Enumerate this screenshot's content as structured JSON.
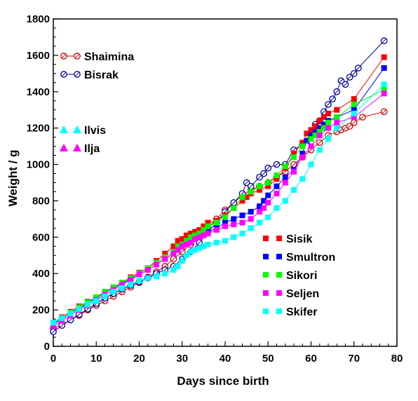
{
  "chart_data": {
    "type": "line",
    "title": "",
    "xlabel": "Days since birth",
    "ylabel": "Weight / g",
    "xlim": [
      0,
      80
    ],
    "ylim": [
      0,
      1800
    ],
    "xticks": [
      0,
      10,
      20,
      30,
      40,
      50,
      60,
      70,
      80
    ],
    "yticks": [
      0,
      200,
      400,
      600,
      800,
      1000,
      1200,
      1400,
      1600,
      1800
    ],
    "grid": false,
    "legend_groups": [
      {
        "position": "top-left",
        "entries": [
          0,
          1
        ]
      },
      {
        "position": "middle-left",
        "entries": [
          2,
          3
        ]
      },
      {
        "position": "bottom-right",
        "entries": [
          4,
          5,
          6,
          7,
          8
        ]
      }
    ],
    "series": [
      {
        "name": "Shaimina",
        "color": "#cc0000",
        "marker": "open-circle",
        "x": [
          0,
          2,
          4,
          6,
          8,
          10,
          12,
          14,
          16,
          18,
          20,
          22,
          24,
          26,
          28,
          30,
          32,
          34,
          36,
          38,
          40,
          42,
          44,
          46,
          48,
          50,
          52,
          54,
          56,
          58,
          60,
          62,
          64,
          66,
          67,
          68,
          69,
          70,
          72,
          77
        ],
        "y": [
          100,
          120,
          145,
          170,
          200,
          225,
          250,
          275,
          300,
          325,
          350,
          380,
          410,
          440,
          480,
          520,
          560,
          600,
          650,
          700,
          750,
          790,
          830,
          860,
          880,
          900,
          930,
          960,
          1000,
          1040,
          1080,
          1120,
          1160,
          1180,
          1190,
          1200,
          1210,
          1230,
          1260,
          1290
        ]
      },
      {
        "name": "Bisrak",
        "color": "#000099",
        "marker": "open-circle",
        "x": [
          0,
          2,
          4,
          6,
          8,
          10,
          12,
          14,
          16,
          18,
          20,
          22,
          24,
          26,
          28,
          30,
          32,
          34,
          36,
          38,
          40,
          42,
          44,
          45,
          46,
          48,
          49,
          50,
          52,
          54,
          56,
          58,
          60,
          61,
          62,
          63,
          64,
          65,
          66,
          67,
          68,
          69,
          70,
          71,
          77
        ],
        "y": [
          80,
          115,
          145,
          175,
          205,
          235,
          265,
          290,
          315,
          335,
          355,
          375,
          400,
          420,
          440,
          480,
          520,
          570,
          630,
          680,
          740,
          790,
          840,
          900,
          880,
          930,
          950,
          980,
          1000,
          1000,
          1080,
          1110,
          1170,
          1220,
          1240,
          1290,
          1330,
          1360,
          1400,
          1460,
          1440,
          1480,
          1500,
          1530,
          1680
        ]
      },
      {
        "name": "Ilvis",
        "color": "#00ffff",
        "marker": "filled-triangle",
        "x": [],
        "y": []
      },
      {
        "name": "Ilja",
        "color": "#ff00ff",
        "marker": "filled-triangle",
        "x": [],
        "y": []
      },
      {
        "name": "Sisik",
        "color": "#ff0000",
        "marker": "filled-square",
        "x": [
          0,
          2,
          4,
          6,
          8,
          10,
          12,
          14,
          16,
          18,
          20,
          22,
          24,
          26,
          28,
          29,
          30,
          31,
          32,
          33,
          34,
          35,
          36,
          38,
          40,
          42,
          44,
          45,
          46,
          48,
          50,
          52,
          54,
          56,
          58,
          59,
          60,
          61,
          62,
          63,
          64,
          66,
          70,
          77
        ],
        "y": [
          130,
          160,
          190,
          220,
          245,
          270,
          300,
          325,
          350,
          380,
          405,
          430,
          470,
          510,
          550,
          580,
          590,
          610,
          620,
          630,
          640,
          660,
          680,
          690,
          720,
          760,
          800,
          820,
          840,
          860,
          880,
          920,
          980,
          1060,
          1120,
          1170,
          1190,
          1210,
          1240,
          1260,
          1280,
          1300,
          1360,
          1590
        ]
      },
      {
        "name": "Smultron",
        "color": "#0000ff",
        "marker": "filled-square",
        "x": [
          0,
          2,
          4,
          6,
          8,
          10,
          12,
          14,
          16,
          18,
          20,
          22,
          24,
          26,
          28,
          29,
          30,
          31,
          32,
          33,
          34,
          35,
          36,
          38,
          40,
          42,
          44,
          46,
          48,
          49,
          50,
          52,
          54,
          56,
          58,
          59,
          60,
          61,
          62,
          63,
          64,
          66,
          70,
          77
        ],
        "y": [
          120,
          150,
          180,
          210,
          235,
          265,
          295,
          320,
          345,
          370,
          395,
          420,
          450,
          480,
          510,
          540,
          560,
          570,
          580,
          600,
          610,
          620,
          630,
          650,
          680,
          700,
          720,
          740,
          770,
          800,
          830,
          880,
          930,
          970,
          1060,
          1130,
          1160,
          1180,
          1200,
          1220,
          1240,
          1260,
          1300,
          1530
        ]
      },
      {
        "name": "Sikori",
        "color": "#00ff00",
        "marker": "filled-square",
        "x": [
          0,
          2,
          4,
          6,
          8,
          10,
          12,
          14,
          16,
          18,
          20,
          22,
          24,
          26,
          28,
          29,
          30,
          31,
          32,
          33,
          34,
          35,
          36,
          38,
          40,
          42,
          44,
          46,
          48,
          50,
          52,
          54,
          56,
          58,
          60,
          61,
          62,
          63,
          64,
          66,
          70,
          77
        ],
        "y": [
          125,
          155,
          185,
          215,
          240,
          270,
          300,
          325,
          350,
          375,
          400,
          430,
          460,
          490,
          520,
          550,
          560,
          580,
          600,
          610,
          620,
          640,
          660,
          680,
          710,
          760,
          820,
          850,
          880,
          900,
          940,
          990,
          1040,
          1100,
          1140,
          1160,
          1180,
          1200,
          1230,
          1260,
          1330,
          1410
        ]
      },
      {
        "name": "Seljen",
        "color": "#ff00ff",
        "marker": "filled-square",
        "x": [
          0,
          2,
          4,
          6,
          8,
          10,
          12,
          14,
          16,
          18,
          20,
          22,
          24,
          26,
          28,
          29,
          30,
          31,
          32,
          33,
          34,
          35,
          36,
          38,
          40,
          42,
          44,
          46,
          48,
          49,
          50,
          52,
          54,
          56,
          58,
          60,
          62,
          64,
          66,
          70,
          77
        ],
        "y": [
          110,
          140,
          170,
          200,
          225,
          255,
          285,
          310,
          340,
          365,
          395,
          420,
          450,
          480,
          510,
          530,
          550,
          560,
          570,
          590,
          600,
          610,
          620,
          640,
          660,
          670,
          680,
          700,
          740,
          760,
          790,
          840,
          900,
          960,
          1040,
          1100,
          1160,
          1200,
          1230,
          1260,
          1390
        ]
      },
      {
        "name": "Skifer",
        "color": "#00ffff",
        "marker": "filled-square",
        "x": [
          0,
          2,
          4,
          6,
          8,
          10,
          12,
          14,
          16,
          18,
          20,
          22,
          24,
          26,
          28,
          29,
          30,
          31,
          32,
          33,
          34,
          35,
          36,
          38,
          40,
          42,
          44,
          46,
          48,
          50,
          52,
          54,
          56,
          58,
          60,
          62,
          64,
          66,
          70,
          77
        ],
        "y": [
          130,
          155,
          180,
          205,
          230,
          250,
          275,
          300,
          320,
          340,
          360,
          375,
          385,
          400,
          420,
          440,
          470,
          500,
          520,
          530,
          540,
          550,
          560,
          570,
          580,
          600,
          620,
          650,
          680,
          710,
          760,
          800,
          860,
          920,
          1000,
          1080,
          1140,
          1200,
          1280,
          1440
        ]
      }
    ]
  }
}
